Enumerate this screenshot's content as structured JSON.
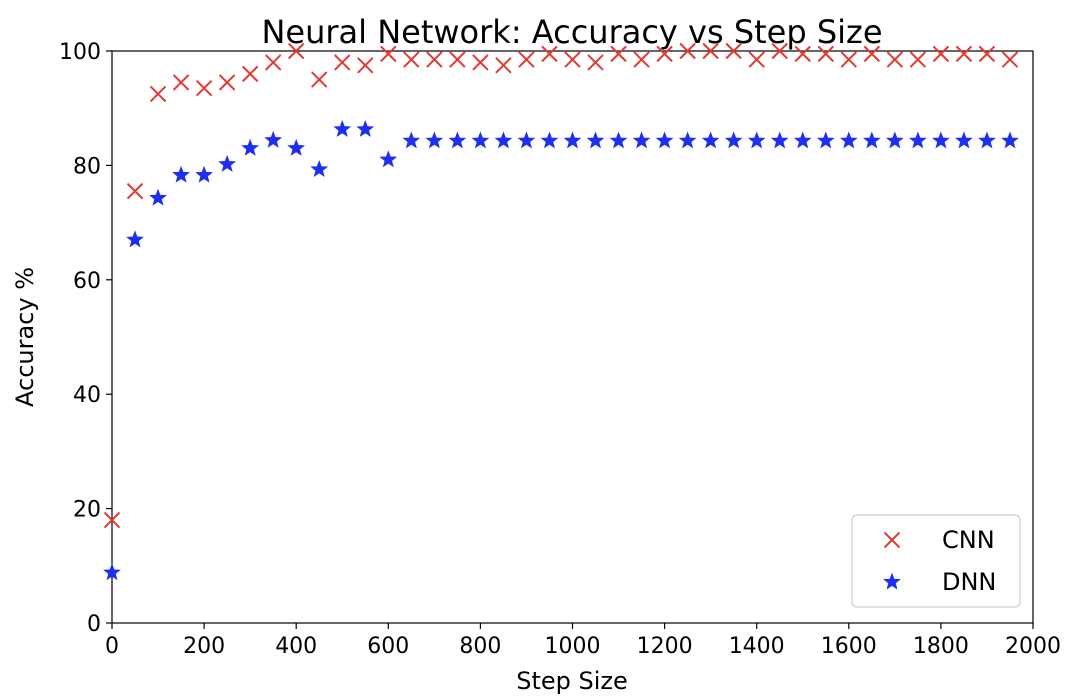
{
  "chart_data": {
    "type": "scatter",
    "title": "Neural Network: Accuracy vs Step Size",
    "xlabel": "Step Size",
    "ylabel": "Accuracy %",
    "xlim": [
      0,
      2000
    ],
    "ylim": [
      0,
      100
    ],
    "xticks": [
      0,
      200,
      400,
      600,
      800,
      1000,
      1200,
      1400,
      1600,
      1800,
      2000
    ],
    "yticks": [
      0,
      20,
      40,
      60,
      80,
      100
    ],
    "grid": false,
    "legend_position": "bottom-right",
    "series": [
      {
        "name": "CNN",
        "marker": "x",
        "color": "#e03a33",
        "x": [
          0,
          50,
          100,
          150,
          200,
          250,
          300,
          350,
          400,
          450,
          500,
          550,
          600,
          650,
          700,
          750,
          800,
          850,
          900,
          950,
          1000,
          1050,
          1100,
          1150,
          1200,
          1250,
          1300,
          1350,
          1400,
          1450,
          1500,
          1550,
          1600,
          1650,
          1700,
          1750,
          1800,
          1850,
          1900,
          1950
        ],
        "y": [
          18.0,
          75.5,
          92.5,
          94.5,
          93.5,
          94.5,
          96.0,
          98.0,
          100.0,
          95.0,
          98.0,
          97.5,
          99.5,
          98.5,
          98.5,
          98.5,
          98.0,
          97.5,
          98.5,
          99.5,
          98.5,
          98.0,
          99.5,
          98.5,
          99.5,
          100.0,
          100.0,
          100.0,
          98.5,
          100.0,
          99.5,
          99.5,
          98.5,
          99.5,
          98.5,
          98.5,
          99.5,
          99.5,
          99.5,
          98.5
        ]
      },
      {
        "name": "DNN",
        "marker": "star",
        "color": "#1f2ff0",
        "x": [
          0,
          50,
          100,
          150,
          200,
          250,
          300,
          350,
          400,
          450,
          500,
          550,
          600,
          650,
          700,
          750,
          800,
          850,
          900,
          950,
          1000,
          1050,
          1100,
          1150,
          1200,
          1250,
          1300,
          1350,
          1400,
          1450,
          1500,
          1550,
          1600,
          1650,
          1700,
          1750,
          1800,
          1850,
          1900,
          1950
        ],
        "y": [
          8.8,
          67.0,
          74.3,
          78.3,
          78.3,
          80.2,
          83.0,
          84.4,
          83.0,
          79.3,
          86.3,
          86.3,
          81.0,
          84.3,
          84.3,
          84.3,
          84.3,
          84.3,
          84.3,
          84.3,
          84.3,
          84.3,
          84.3,
          84.3,
          84.3,
          84.3,
          84.3,
          84.3,
          84.3,
          84.3,
          84.3,
          84.3,
          84.3,
          84.3,
          84.3,
          84.3,
          84.3,
          84.3,
          84.3,
          84.3
        ]
      }
    ]
  }
}
